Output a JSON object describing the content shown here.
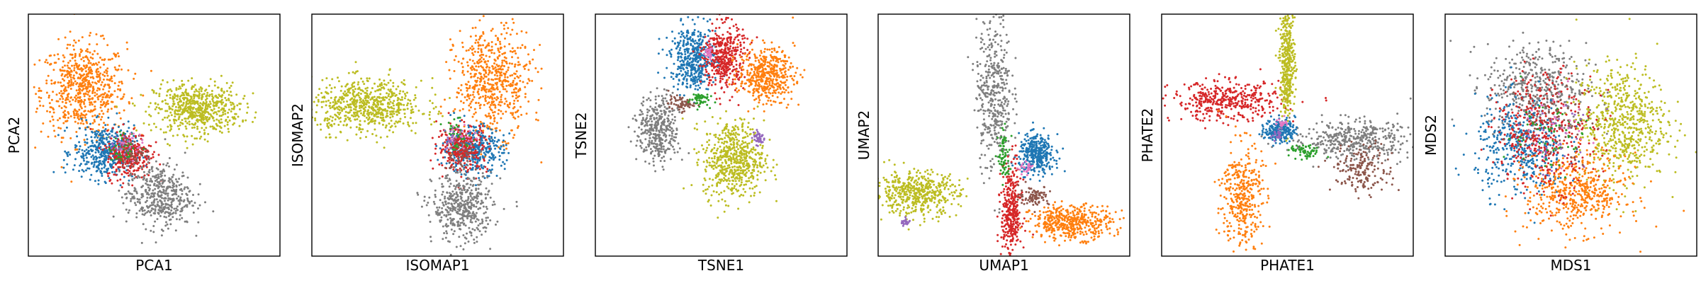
{
  "colors": {
    "blue": "#1f77b4",
    "orange": "#ff7f0e",
    "green": "#2ca02c",
    "red": "#d62728",
    "purple": "#9467bd",
    "brown": "#8c564b",
    "pink": "#e377c2",
    "gray": "#7f7f7f",
    "olive": "#bcbd22"
  },
  "chart_data": [
    {
      "type": "scatter",
      "xlabel": "PCA1",
      "ylabel": "PCA2",
      "xlim": [
        0,
        1
      ],
      "ylim": [
        0,
        1
      ],
      "ticks": "none",
      "grid": false,
      "clusters": [
        {
          "color": "orange",
          "cx": 0.22,
          "cy": 0.69,
          "sx": 0.085,
          "sy": 0.095,
          "n": 650
        },
        {
          "color": "olive",
          "cx": 0.67,
          "cy": 0.61,
          "sx": 0.085,
          "sy": 0.052,
          "n": 600
        },
        {
          "color": "blue",
          "cx": 0.3,
          "cy": 0.43,
          "sx": 0.06,
          "sy": 0.055,
          "n": 420
        },
        {
          "color": "red",
          "cx": 0.4,
          "cy": 0.42,
          "sx": 0.045,
          "sy": 0.05,
          "n": 300
        },
        {
          "color": "gray",
          "cx": 0.52,
          "cy": 0.25,
          "sx": 0.065,
          "sy": 0.065,
          "n": 450
        },
        {
          "color": "brown",
          "cx": 0.42,
          "cy": 0.43,
          "sx": 0.03,
          "sy": 0.03,
          "n": 50
        },
        {
          "color": "green",
          "cx": 0.38,
          "cy": 0.45,
          "sx": 0.03,
          "sy": 0.03,
          "n": 40
        },
        {
          "color": "purple",
          "cx": 0.36,
          "cy": 0.46,
          "sx": 0.025,
          "sy": 0.025,
          "n": 20
        },
        {
          "color": "pink",
          "cx": 0.4,
          "cy": 0.47,
          "sx": 0.025,
          "sy": 0.025,
          "n": 20
        }
      ]
    },
    {
      "type": "scatter",
      "xlabel": "ISOMAP1",
      "ylabel": "ISOMAP2",
      "xlim": [
        0,
        1
      ],
      "ylim": [
        0,
        1
      ],
      "ticks": "none",
      "grid": false,
      "clusters": [
        {
          "color": "olive",
          "cx": 0.22,
          "cy": 0.62,
          "sx": 0.11,
          "sy": 0.055,
          "n": 650
        },
        {
          "color": "orange",
          "cx": 0.72,
          "cy": 0.72,
          "sx": 0.075,
          "sy": 0.11,
          "n": 600
        },
        {
          "color": "blue",
          "cx": 0.64,
          "cy": 0.44,
          "sx": 0.06,
          "sy": 0.05,
          "n": 380
        },
        {
          "color": "red",
          "cx": 0.6,
          "cy": 0.45,
          "sx": 0.05,
          "sy": 0.05,
          "n": 280
        },
        {
          "color": "gray",
          "cx": 0.6,
          "cy": 0.2,
          "sx": 0.06,
          "sy": 0.07,
          "n": 450
        },
        {
          "color": "brown",
          "cx": 0.58,
          "cy": 0.42,
          "sx": 0.03,
          "sy": 0.03,
          "n": 40
        },
        {
          "color": "green",
          "cx": 0.58,
          "cy": 0.5,
          "sx": 0.03,
          "sy": 0.03,
          "n": 40
        },
        {
          "color": "purple",
          "cx": 0.56,
          "cy": 0.48,
          "sx": 0.025,
          "sy": 0.025,
          "n": 20
        },
        {
          "color": "pink",
          "cx": 0.6,
          "cy": 0.5,
          "sx": 0.025,
          "sy": 0.025,
          "n": 20
        }
      ]
    },
    {
      "type": "scatter",
      "xlabel": "TSNE1",
      "ylabel": "TSNE2",
      "xlim": [
        0,
        1
      ],
      "ylim": [
        0,
        1
      ],
      "ticks": "none",
      "grid": false,
      "clusters": [
        {
          "color": "blue",
          "cx": 0.39,
          "cy": 0.82,
          "sx": 0.045,
          "sy": 0.065,
          "n": 450
        },
        {
          "color": "red",
          "cx": 0.51,
          "cy": 0.82,
          "sx": 0.04,
          "sy": 0.07,
          "n": 420
        },
        {
          "color": "orange",
          "cx": 0.68,
          "cy": 0.75,
          "sx": 0.055,
          "sy": 0.055,
          "n": 450
        },
        {
          "color": "gray",
          "cx": 0.25,
          "cy": 0.52,
          "sx": 0.04,
          "sy": 0.07,
          "n": 380
        },
        {
          "color": "olive",
          "cx": 0.55,
          "cy": 0.4,
          "sx": 0.06,
          "sy": 0.08,
          "n": 600
        },
        {
          "color": "brown",
          "cx": 0.34,
          "cy": 0.63,
          "sx": 0.025,
          "sy": 0.015,
          "n": 70
        },
        {
          "color": "green",
          "cx": 0.41,
          "cy": 0.65,
          "sx": 0.02,
          "sy": 0.015,
          "n": 50
        },
        {
          "color": "purple",
          "cx": 0.65,
          "cy": 0.49,
          "sx": 0.012,
          "sy": 0.015,
          "n": 40
        },
        {
          "color": "pink",
          "cx": 0.45,
          "cy": 0.84,
          "sx": 0.01,
          "sy": 0.015,
          "n": 30
        }
      ]
    },
    {
      "type": "scatter",
      "xlabel": "UMAP1",
      "ylabel": "UMAP2",
      "xlim": [
        0,
        1
      ],
      "ylim": [
        0,
        1
      ],
      "ticks": "none",
      "grid": false,
      "clusters": [
        {
          "color": "gray",
          "cx": 0.46,
          "cy": 0.68,
          "sx": 0.035,
          "sy": 0.16,
          "n": 420
        },
        {
          "color": "blue",
          "cx": 0.63,
          "cy": 0.42,
          "sx": 0.035,
          "sy": 0.04,
          "n": 360
        },
        {
          "color": "red",
          "cx": 0.53,
          "cy": 0.18,
          "sx": 0.02,
          "sy": 0.1,
          "n": 360
        },
        {
          "color": "orange",
          "cx": 0.77,
          "cy": 0.14,
          "sx": 0.08,
          "sy": 0.035,
          "n": 450
        },
        {
          "color": "olive",
          "cx": 0.15,
          "cy": 0.26,
          "sx": 0.085,
          "sy": 0.045,
          "n": 500
        },
        {
          "color": "brown",
          "cx": 0.62,
          "cy": 0.25,
          "sx": 0.03,
          "sy": 0.02,
          "n": 90
        },
        {
          "color": "green",
          "cx": 0.5,
          "cy": 0.41,
          "sx": 0.012,
          "sy": 0.05,
          "n": 70
        },
        {
          "color": "purple",
          "cx": 0.11,
          "cy": 0.14,
          "sx": 0.01,
          "sy": 0.01,
          "n": 25
        },
        {
          "color": "pink",
          "cx": 0.59,
          "cy": 0.36,
          "sx": 0.015,
          "sy": 0.012,
          "n": 25
        }
      ]
    },
    {
      "type": "scatter",
      "xlabel": "PHATE1",
      "ylabel": "PHATE2",
      "xlim": [
        0,
        1
      ],
      "ylim": [
        0,
        1
      ],
      "ticks": "none",
      "grid": false,
      "clusters": [
        {
          "color": "red",
          "cx": 0.26,
          "cy": 0.64,
          "sx": 0.11,
          "sy": 0.04,
          "n": 420
        },
        {
          "color": "olive",
          "cx": 0.5,
          "cy": 0.8,
          "sx": 0.015,
          "sy": 0.11,
          "n": 380
        },
        {
          "color": "orange",
          "cx": 0.32,
          "cy": 0.25,
          "sx": 0.04,
          "sy": 0.11,
          "n": 380
        },
        {
          "color": "gray",
          "cx": 0.76,
          "cy": 0.48,
          "sx": 0.12,
          "sy": 0.04,
          "n": 420
        },
        {
          "color": "blue",
          "cx": 0.47,
          "cy": 0.52,
          "sx": 0.03,
          "sy": 0.025,
          "n": 220
        },
        {
          "color": "brown",
          "cx": 0.8,
          "cy": 0.36,
          "sx": 0.06,
          "sy": 0.05,
          "n": 180
        },
        {
          "color": "green",
          "cx": 0.57,
          "cy": 0.43,
          "sx": 0.03,
          "sy": 0.015,
          "n": 60
        },
        {
          "color": "purple",
          "cx": 0.46,
          "cy": 0.5,
          "sx": 0.012,
          "sy": 0.012,
          "n": 20
        },
        {
          "color": "pink",
          "cx": 0.48,
          "cy": 0.55,
          "sx": 0.012,
          "sy": 0.012,
          "n": 20
        }
      ]
    },
    {
      "type": "scatter",
      "xlabel": "MDS1",
      "ylabel": "MDS2",
      "xlim": [
        0,
        1
      ],
      "ylim": [
        0,
        1
      ],
      "ticks": "none",
      "grid": false,
      "clusters": [
        {
          "color": "gray",
          "cx": 0.36,
          "cy": 0.7,
          "sx": 0.1,
          "sy": 0.09,
          "n": 450
        },
        {
          "color": "olive",
          "cx": 0.7,
          "cy": 0.55,
          "sx": 0.09,
          "sy": 0.12,
          "n": 650
        },
        {
          "color": "blue",
          "cx": 0.3,
          "cy": 0.45,
          "sx": 0.09,
          "sy": 0.1,
          "n": 450
        },
        {
          "color": "orange",
          "cx": 0.52,
          "cy": 0.26,
          "sx": 0.1,
          "sy": 0.08,
          "n": 500
        },
        {
          "color": "red",
          "cx": 0.4,
          "cy": 0.52,
          "sx": 0.1,
          "sy": 0.12,
          "n": 400
        },
        {
          "color": "brown",
          "cx": 0.42,
          "cy": 0.55,
          "sx": 0.08,
          "sy": 0.08,
          "n": 80
        },
        {
          "color": "green",
          "cx": 0.4,
          "cy": 0.5,
          "sx": 0.08,
          "sy": 0.08,
          "n": 60
        },
        {
          "color": "purple",
          "cx": 0.45,
          "cy": 0.5,
          "sx": 0.08,
          "sy": 0.08,
          "n": 30
        },
        {
          "color": "pink",
          "cx": 0.43,
          "cy": 0.55,
          "sx": 0.08,
          "sy": 0.08,
          "n": 30
        }
      ]
    }
  ]
}
